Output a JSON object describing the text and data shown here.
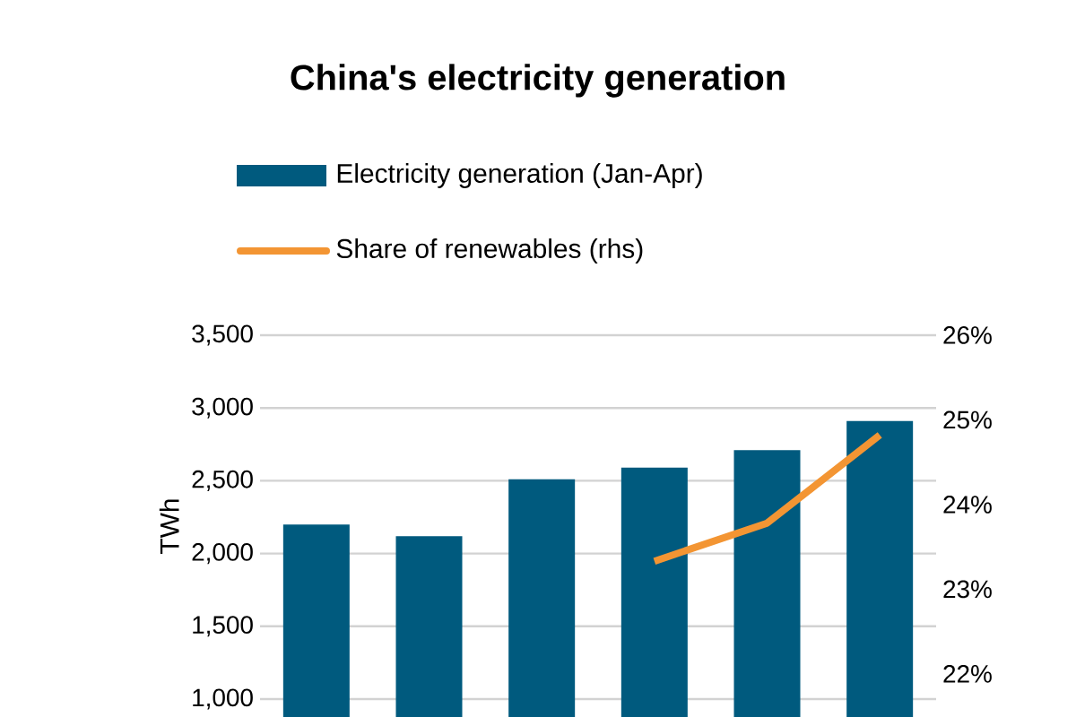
{
  "chart_data": {
    "type": "bar",
    "title": "China's electricity generation",
    "ylabel": "TWh",
    "categories": [
      null,
      null,
      null,
      null,
      null,
      null
    ],
    "series": [
      {
        "name": "Electricity generation (Jan-Apr)",
        "color": "#005a7e",
        "values": [
          2200,
          2120,
          2510,
          2590,
          2710,
          2910
        ]
      },
      {
        "name": "Share of renewables (rhs)",
        "type": "line",
        "axis": "y2",
        "color": "#f39533",
        "values": [
          null,
          null,
          null,
          23.33,
          23.78,
          24.82
        ]
      }
    ],
    "ylim": [
      877,
      3500
    ],
    "yticks": [
      {
        "value": 1000,
        "label": "1,000"
      },
      {
        "value": 1500,
        "label": "1,500"
      },
      {
        "value": 2000,
        "label": "2,000"
      },
      {
        "value": 2500,
        "label": "2,500"
      },
      {
        "value": 3000,
        "label": "3,000"
      },
      {
        "value": 3500,
        "label": "3,500"
      }
    ],
    "y2lim": [
      21.49,
      26
    ],
    "y2ticks": [
      {
        "value": 22,
        "label": "22%"
      },
      {
        "value": 23,
        "label": "23%"
      },
      {
        "value": 24,
        "label": "24%"
      },
      {
        "value": 25,
        "label": "25%"
      },
      {
        "value": 26,
        "label": "26%"
      }
    ],
    "grid": "y",
    "legend": "top"
  }
}
